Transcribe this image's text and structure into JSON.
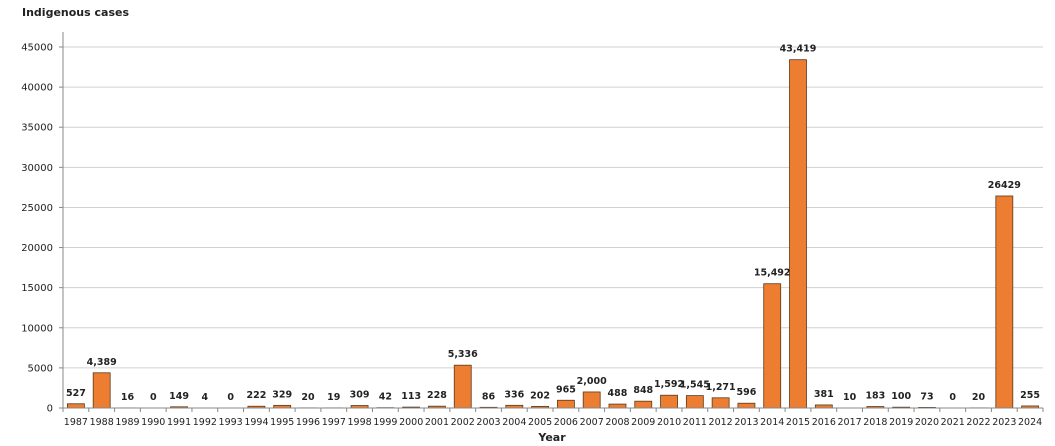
{
  "chart_data": {
    "type": "bar",
    "ylabel": "Indigenous cases",
    "xlabel": "Year",
    "ylim": [
      0,
      45000
    ],
    "yticks": [
      0,
      5000,
      10000,
      15000,
      20000,
      25000,
      30000,
      35000,
      40000,
      45000
    ],
    "ytick_labels": [
      "0",
      "5000",
      "10000",
      "15000",
      "20000",
      "25000",
      "30000",
      "35000",
      "40000",
      "45000"
    ],
    "grid": true,
    "bar_color": "#ED7D31",
    "categories": [
      "1987",
      "1988",
      "1989",
      "1990",
      "1991",
      "1992",
      "1993",
      "1994",
      "1995",
      "1996",
      "1997",
      "1998",
      "1999",
      "2000",
      "2001",
      "2002",
      "2003",
      "2004",
      "2005",
      "2006",
      "2007",
      "2008",
      "2009",
      "2010",
      "2011",
      "2012",
      "2013",
      "2014",
      "2015",
      "2016",
      "2017",
      "2018",
      "2019",
      "2020",
      "2021",
      "2022",
      "2023",
      "2024"
    ],
    "values": [
      527,
      4389,
      16,
      0,
      149,
      4,
      0,
      222,
      329,
      20,
      19,
      309,
      42,
      113,
      228,
      5336,
      86,
      336,
      202,
      965,
      2000,
      488,
      848,
      1592,
      1545,
      1271,
      596,
      15492,
      43419,
      381,
      10,
      183,
      100,
      73,
      0,
      20,
      26429,
      255
    ],
    "data_labels": [
      "527",
      "4,389",
      "16",
      "0",
      "149",
      "4",
      "0",
      "222",
      "329",
      "20",
      "19",
      "309",
      "42",
      "113",
      "228",
      "5,336",
      "86",
      "336",
      "202",
      "965",
      "2,000",
      "488",
      "848",
      "1,592",
      "1,545",
      "1,271",
      "596",
      "15,492",
      "43,419",
      "381",
      "10",
      "183",
      "100",
      "73",
      "0",
      "20",
      "26429",
      "255"
    ]
  }
}
